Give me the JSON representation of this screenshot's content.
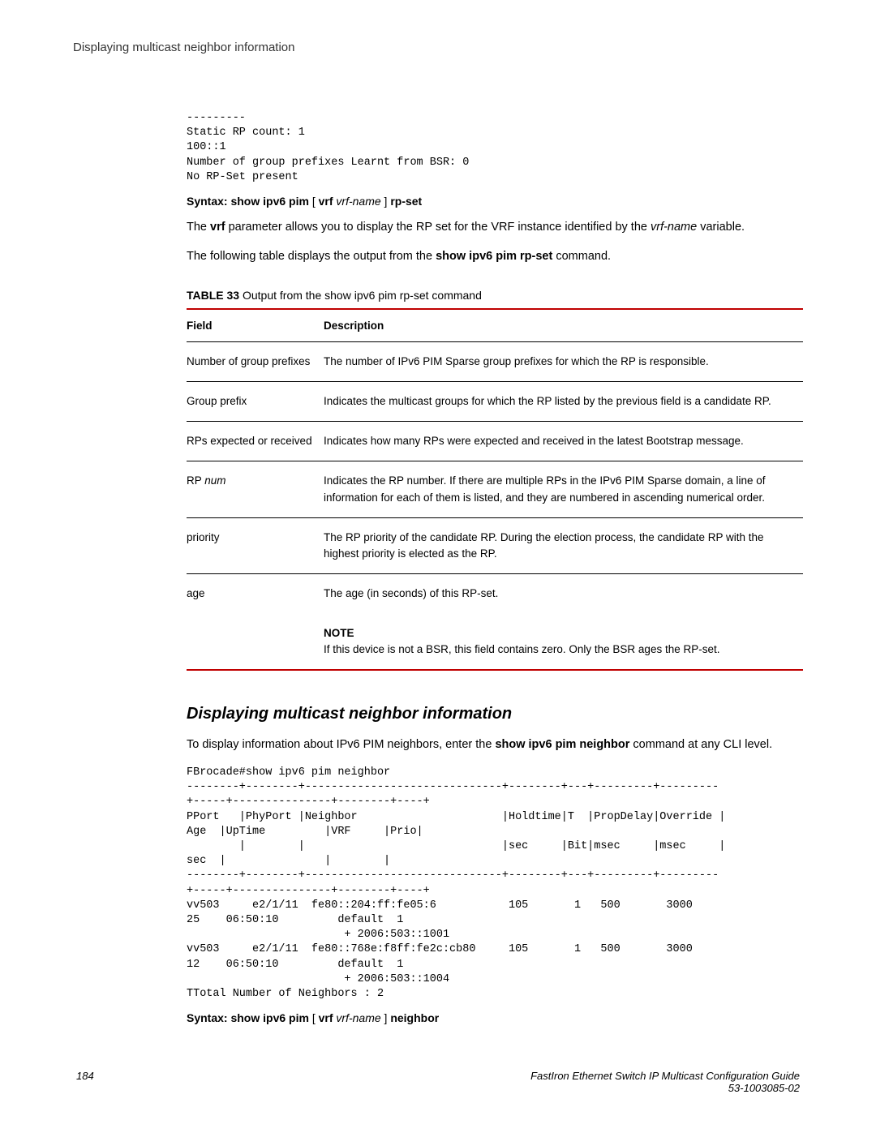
{
  "header": {
    "title": "Displaying multicast neighbor information"
  },
  "codeblock1": "---------\nStatic RP count: 1\n100::1\nNumber of group prefixes Learnt from BSR: 0\nNo RP-Set present",
  "syntax1": {
    "prefix": "Syntax: show ipv6 pim",
    "mid": " [ ",
    "vrf": "vrf",
    "space": " ",
    "arg": "vrf-name",
    "mid2": " ] ",
    "suffix": "rp-set"
  },
  "para1": {
    "t1": "The ",
    "b1": "vrf",
    "t2": " parameter allows you to display the RP set for the VRF instance identified by the ",
    "i1": "vrf-name",
    "t3": " variable."
  },
  "para2": {
    "t1": "The following table displays the output from the ",
    "b1": "show ipv6 pim rp-set",
    "t2": " command."
  },
  "table_caption": {
    "label": "TABLE 33",
    "text": "   Output from the show ipv6 pim rp-set command"
  },
  "table": {
    "headers": {
      "f": "Field",
      "d": "Description"
    },
    "rows": [
      {
        "field": "Number of group prefixes",
        "desc": "The number of IPv6 PIM Sparse group prefixes for which the RP is responsible."
      },
      {
        "field": "Group prefix",
        "desc": "Indicates the multicast groups for which the RP listed by the previous field is a candidate RP."
      },
      {
        "field": "RPs expected or received",
        "desc": "Indicates how many RPs were expected and received in the latest Bootstrap message."
      },
      {
        "field_pre": "RP ",
        "field_it": "num",
        "desc": "Indicates the RP number. If there are multiple RPs in the IPv6 PIM Sparse domain, a line of information for each of them is listed, and they are numbered in ascending numerical order."
      },
      {
        "field": "priority",
        "desc": "The RP priority of the candidate RP. During the election process, the candidate RP with the highest priority is elected as the RP."
      },
      {
        "field": "age",
        "desc": "The age (in seconds) of this RP-set."
      }
    ],
    "note": {
      "label": "NOTE",
      "text": "If this device is not a BSR, this field contains zero. Only the BSR ages the RP-set."
    }
  },
  "section2": {
    "heading": "Displaying multicast neighbor information",
    "para": {
      "t1": "To display information about IPv6 PIM neighbors, enter the ",
      "b1": "show ipv6 pim neighbor",
      "t2": " command at any CLI level."
    }
  },
  "codeblock2": "FBrocade#show ipv6 pim neighbor\n--------+--------+------------------------------+--------+---+---------+---------\n+-----+---------------+--------+----+\nPPort   |PhyPort |Neighbor                      |Holdtime|T  |PropDelay|Override |\nAge  |UpTime         |VRF     |Prio|\n        |        |                              |sec     |Bit|msec     |msec     |\nsec  |               |        |\n--------+--------+------------------------------+--------+---+---------+---------\n+-----+---------------+--------+----+           \nvv503     e2/1/11  fe80::204:ff:fe05:6           105       1   500       3000      \n25    06:50:10         default  1\n                        + 2006:503::1001\nvv503     e2/1/11  fe80::768e:f8ff:fe2c:cb80     105       1   500       3000      \n12    06:50:10         default  1\n                        + 2006:503::1004\nTTotal Number of Neighbors : 2",
  "syntax2": {
    "prefix": "Syntax: show ipv6 pim",
    "mid": " [ ",
    "vrf": "vrf",
    "space": " ",
    "arg": "vrf-name",
    "mid2": " ] ",
    "suffix": "neighbor"
  },
  "footer": {
    "page": "184",
    "title": "FastIron Ethernet Switch IP Multicast Configuration Guide",
    "docnum": "53-1003085-02"
  }
}
